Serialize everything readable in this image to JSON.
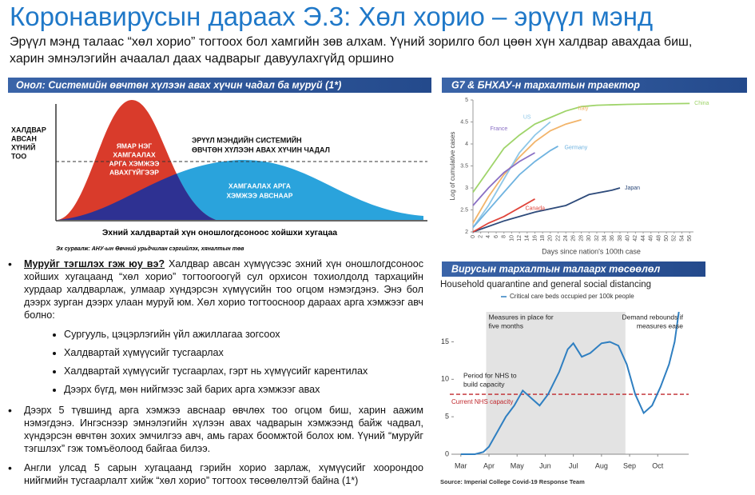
{
  "header": {
    "title": "Коронавирусын дараах Э.3: Хөл хорио – эрүүл мэнд",
    "subtitle": "Эрүүл мэнд талаас “хөл хорио” тогтоох бол хамгийн зөв алхам. Үүний зорилго бол цөөн хүн халдвар авахдаа биш, харин эмнэлэгийн ачаалал даах чадварыг давуулахгүйд оршино"
  },
  "theory": {
    "heading": "Онол: Системийн өвчтөн хүлээн авах хүчин чадал ба муруй (1*)",
    "y_label": [
      "ХАЛДВАР",
      "АВСАН",
      "ХҮНИЙ",
      "ТОО"
    ],
    "red_label": [
      "ЯМАР НЭГ",
      "ХАМГААЛАХ",
      "АРГА ХЭМЖЭЭ",
      "АВАХГҮЙГЭЭР"
    ],
    "capacity_label": [
      "ЭРҮҮЛ МЭНДИЙН СИСТЕМИЙН",
      "ӨВЧТӨН ХҮЛЭЭН АВАХ ХҮЧИН ЧАДАЛ"
    ],
    "blue_label": [
      "ХАМГААЛАХ АРГА",
      "ХЭМЖЭЭ АВСНААР"
    ],
    "x_label": "Эхний халдвартай хүн оношлогдсоноос хойшхи хугацаа",
    "source": "Эх сурвалж: АНУ-ын Өвчний урьдчилан сэргийлэх, хяналтын төв"
  },
  "body": {
    "q_lead": "Муруйг тэгшлэх гэж юу вэ?",
    "q_text": "Халдвар авсан хүмүүсээс эхний хүн оношлогдсоноос хойших хугацаанд “хөл хорио” тогтоогоогүй сул орхисон тохиолдолд тархацийн хурдаар халдварлаж, улмаар хүндэрсэн хүмүүсийн тоо огцом нэмэгдэнэ. Энэ бол дээрх зурган дээрх улаан муруй юм. Хөл хорио тогтоосноор дараах арга хэмжээг авч болно:",
    "measures": [
      "Сургууль, цэцэрлэгийн үйл ажиллагаа зогсоох",
      "Халдвартай хүмүүсийг тусгаарлах",
      "Халдвартай хүмүүсийг тусгаарлах, гэрт нь хүмүүсийг карентилах",
      "Дээрх бүгд, мөн нийгмээс зай барих арга хэмжээг авах"
    ],
    "paragraphs": [
      "Дээрх 5 түвшинд арга хэмжээ авснаар өвчлөх тоо огцом биш, харин аажим нэмэгдэнэ. Ингэснээр эмнэлэгийн хүлээн авах чадварын хэмжээнд байж чадвал, хүндэрсэн өвчтөн зохих эмчилгээ авч, амь гарах боомжтой болох юм. Үүний “муруйг тэгшлэх” гэж томъёолоод байгаа билээ.",
      "Англи улсад 5 сарын хугацаанд гэрийн хорио зарлаж, хүмүүсийг хоорондоо нийгмийн тусгаарлалт хийж “хөл хорио” тогтоох төсөөлөлтэй байна (1*)"
    ]
  },
  "g7": {
    "heading": "G7 & БНХАУ-н тархалтын траектор",
    "chart": {
      "type": "line",
      "y_label": "Log of cumulative cases",
      "x_label": "Days since nation's 100th case",
      "xlim": [
        0,
        57
      ],
      "ylim": [
        2,
        5
      ],
      "xticks": [
        0,
        2,
        4,
        6,
        8,
        10,
        12,
        14,
        16,
        18,
        20,
        22,
        24,
        26,
        28,
        30,
        32,
        34,
        36,
        38,
        40,
        42,
        44,
        46,
        48,
        50,
        52,
        54,
        56
      ],
      "yticks": [
        2,
        2.5,
        3,
        3.5,
        4,
        4.5,
        5
      ],
      "series": [
        {
          "name": "China",
          "color": "#9fd46a",
          "x": [
            0,
            4,
            8,
            12,
            16,
            20,
            24,
            28,
            32,
            40,
            48,
            56
          ],
          "values": [
            2.9,
            3.4,
            3.9,
            4.2,
            4.45,
            4.6,
            4.75,
            4.85,
            4.88,
            4.9,
            4.91,
            4.92
          ]
        },
        {
          "name": "Italy",
          "color": "#f2b46a",
          "x": [
            0,
            4,
            8,
            12,
            16,
            20,
            24,
            28
          ],
          "values": [
            2.2,
            2.8,
            3.3,
            3.7,
            4.05,
            4.3,
            4.45,
            4.55
          ]
        },
        {
          "name": "US",
          "color": "#8ec7e8",
          "x": [
            0,
            4,
            8,
            12,
            16,
            20
          ],
          "values": [
            2.1,
            2.6,
            3.2,
            3.8,
            4.2,
            4.5
          ]
        },
        {
          "name": "Germany",
          "color": "#6fb3e0",
          "x": [
            0,
            4,
            8,
            12,
            16,
            20,
            22
          ],
          "values": [
            2.1,
            2.5,
            2.9,
            3.3,
            3.6,
            3.85,
            3.95
          ]
        },
        {
          "name": "France",
          "color": "#8a6fc4",
          "x": [
            0,
            4,
            8,
            12,
            16
          ],
          "values": [
            2.6,
            3.0,
            3.35,
            3.6,
            3.8
          ]
        },
        {
          "name": "Japan",
          "color": "#2d4a7a",
          "x": [
            0,
            8,
            16,
            24,
            30,
            36,
            38
          ],
          "values": [
            2.0,
            2.25,
            2.45,
            2.6,
            2.85,
            2.95,
            3.0
          ]
        },
        {
          "name": "Canada",
          "color": "#e0443a",
          "x": [
            0,
            4,
            8,
            12,
            16
          ],
          "values": [
            2.0,
            2.2,
            2.35,
            2.55,
            2.75
          ]
        }
      ]
    }
  },
  "projection": {
    "heading": "Вирусын тархалтын талаарх төсөөлөл",
    "chart": {
      "type": "line",
      "subtitle": "Household quarantine and general social distancing",
      "legend": "Critical care beds occupied per 100k people",
      "color": "#2f7fc1",
      "xlim": [
        -0.25,
        8.1
      ],
      "ylim": [
        0,
        19
      ],
      "xticks": [
        {
          "value": 0,
          "label": "Mar"
        },
        {
          "value": 1,
          "label": "Apr"
        },
        {
          "value": 2,
          "label": "May"
        },
        {
          "value": 3,
          "label": "Jun"
        },
        {
          "value": 4,
          "label": "Jul"
        },
        {
          "value": 5,
          "label": "Aug"
        },
        {
          "value": 6,
          "label": "Sep"
        },
        {
          "value": 7,
          "label": "Oct"
        }
      ],
      "yticks": [
        0,
        5,
        10,
        15
      ],
      "x": [
        0,
        0.5,
        0.8,
        1,
        1.3,
        1.6,
        1.9,
        2.2,
        2.5,
        2.8,
        3.1,
        3.5,
        3.8,
        4,
        4.3,
        4.6,
        5,
        5.3,
        5.6,
        5.9,
        6.2,
        6.5,
        6.8,
        7.1,
        7.4,
        7.6,
        7.75
      ],
      "values": [
        0,
        0,
        0.3,
        1,
        3,
        5,
        6.5,
        8.5,
        7.5,
        6.5,
        8,
        11,
        14,
        14.8,
        13,
        13.5,
        14.8,
        15,
        14.5,
        12,
        8,
        5.5,
        6.5,
        9,
        12,
        15,
        19
      ],
      "shade": [
        0.9,
        5.85
      ],
      "shade_label": [
        "Measures in place for",
        "five months"
      ],
      "rebound_label": [
        "Demand rebounds if",
        "measures ease"
      ],
      "period_label": [
        "Period for NHS to",
        "build capacity"
      ],
      "capacity": 8,
      "capacity_label": "Current NHS capacity",
      "source": "Source: Imperial College Covid-19 Response Team"
    }
  }
}
